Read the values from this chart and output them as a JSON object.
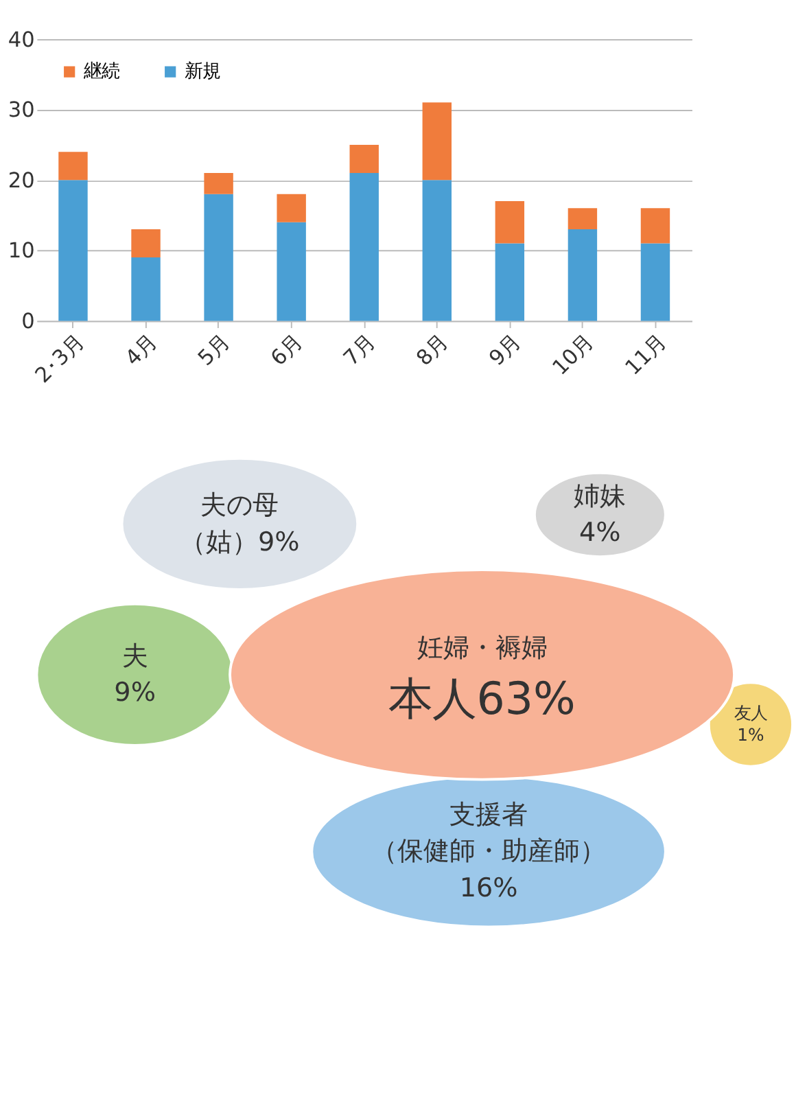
{
  "chart_data": [
    {
      "type": "bar",
      "stacked": true,
      "categories": [
        "2･3月",
        "4月",
        "5月",
        "6月",
        "7月",
        "8月",
        "9月",
        "10月",
        "11月"
      ],
      "series": [
        {
          "name": "新規",
          "color": "#4a9fd4",
          "values": [
            20,
            9,
            18,
            14,
            21,
            20,
            11,
            13,
            11
          ]
        },
        {
          "name": "継続",
          "color": "#f07c3c",
          "values": [
            4,
            4,
            3,
            4,
            4,
            11,
            6,
            3,
            5
          ]
        }
      ],
      "ylim": [
        0,
        40
      ],
      "yticks": [
        0,
        10,
        20,
        30,
        40
      ],
      "grid": "y",
      "legend": "top left"
    },
    {
      "type": "other",
      "categories": [
        "夫の母",
        "姉妹",
        "夫",
        "妊婦・褥婦",
        "友人",
        "支援者（保健師・助産師）"
      ],
      "value_labels": [
        "（姑）9%",
        "4%",
        "9%",
        "本人63%",
        "1%",
        "16%"
      ],
      "colors": [
        "#dde3ea",
        "#d6d6d6",
        "#a9d18e",
        "#f8b296",
        "#f5d77a",
        "#9cc8ea"
      ]
    }
  ]
}
